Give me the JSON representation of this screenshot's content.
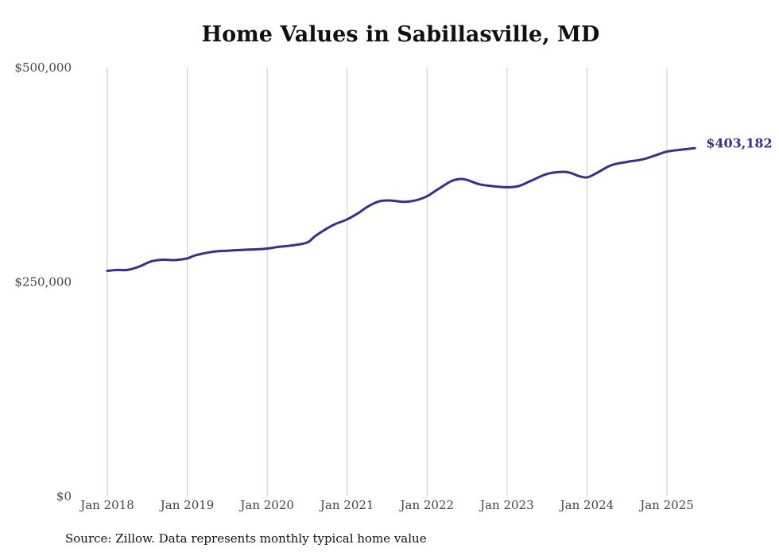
{
  "chart_data": {
    "type": "line",
    "title": "Home Values in Sabillasville, MD",
    "xlabel": "",
    "ylabel": "",
    "ylim": [
      0,
      500000
    ],
    "yticks": [
      {
        "value": 0,
        "label": "$0"
      },
      {
        "value": 250000,
        "label": "$250,000"
      },
      {
        "value": 500000,
        "label": "$500,000"
      }
    ],
    "xticks": [
      {
        "value": 2018,
        "label": "Jan 2018"
      },
      {
        "value": 2019,
        "label": "Jan 2019"
      },
      {
        "value": 2020,
        "label": "Jan 2020"
      },
      {
        "value": 2021,
        "label": "Jan 2021"
      },
      {
        "value": 2022,
        "label": "Jan 2022"
      },
      {
        "value": 2023,
        "label": "Jan 2023"
      },
      {
        "value": 2024,
        "label": "Jan 2024"
      },
      {
        "value": 2025,
        "label": "Jan 2025"
      }
    ],
    "xlim": [
      2017.92,
      2025.5
    ],
    "grid": "vertical",
    "end_label": "$403,182",
    "line_color": "#3a2e8c",
    "series": [
      {
        "x": [
          2018.0,
          2018.12,
          2018.25,
          2018.4,
          2018.55,
          2018.7,
          2018.85,
          2019.0,
          2019.1,
          2019.3,
          2019.5,
          2019.7,
          2019.85,
          2020.0,
          2020.15,
          2020.3,
          2020.5,
          2020.6,
          2020.75,
          2020.85,
          2021.0,
          2021.15,
          2021.25,
          2021.4,
          2021.55,
          2021.7,
          2021.85,
          2022.0,
          2022.15,
          2022.3,
          2022.4,
          2022.5,
          2022.65,
          2022.8,
          2023.0,
          2023.15,
          2023.3,
          2023.5,
          2023.7,
          2023.8,
          2023.9,
          2024.0,
          2024.1,
          2024.3,
          2024.5,
          2024.7,
          2024.85,
          2025.0,
          2025.15,
          2025.35
        ],
        "y": [
          263000,
          264000,
          264000,
          268000,
          274000,
          276000,
          275500,
          277500,
          281000,
          285000,
          286500,
          287500,
          288000,
          289000,
          291000,
          292500,
          296000,
          303500,
          312500,
          317500,
          323000,
          331000,
          337500,
          344000,
          345000,
          343500,
          345000,
          350000,
          359000,
          367500,
          370000,
          369000,
          364000,
          362000,
          360500,
          362000,
          368000,
          376000,
          378500,
          377000,
          373500,
          372000,
          376000,
          386000,
          390000,
          393000,
          397500,
          402000,
          404000,
          406000
        ]
      }
    ]
  },
  "source": "Source: Zillow. Data represents monthly typical home value"
}
